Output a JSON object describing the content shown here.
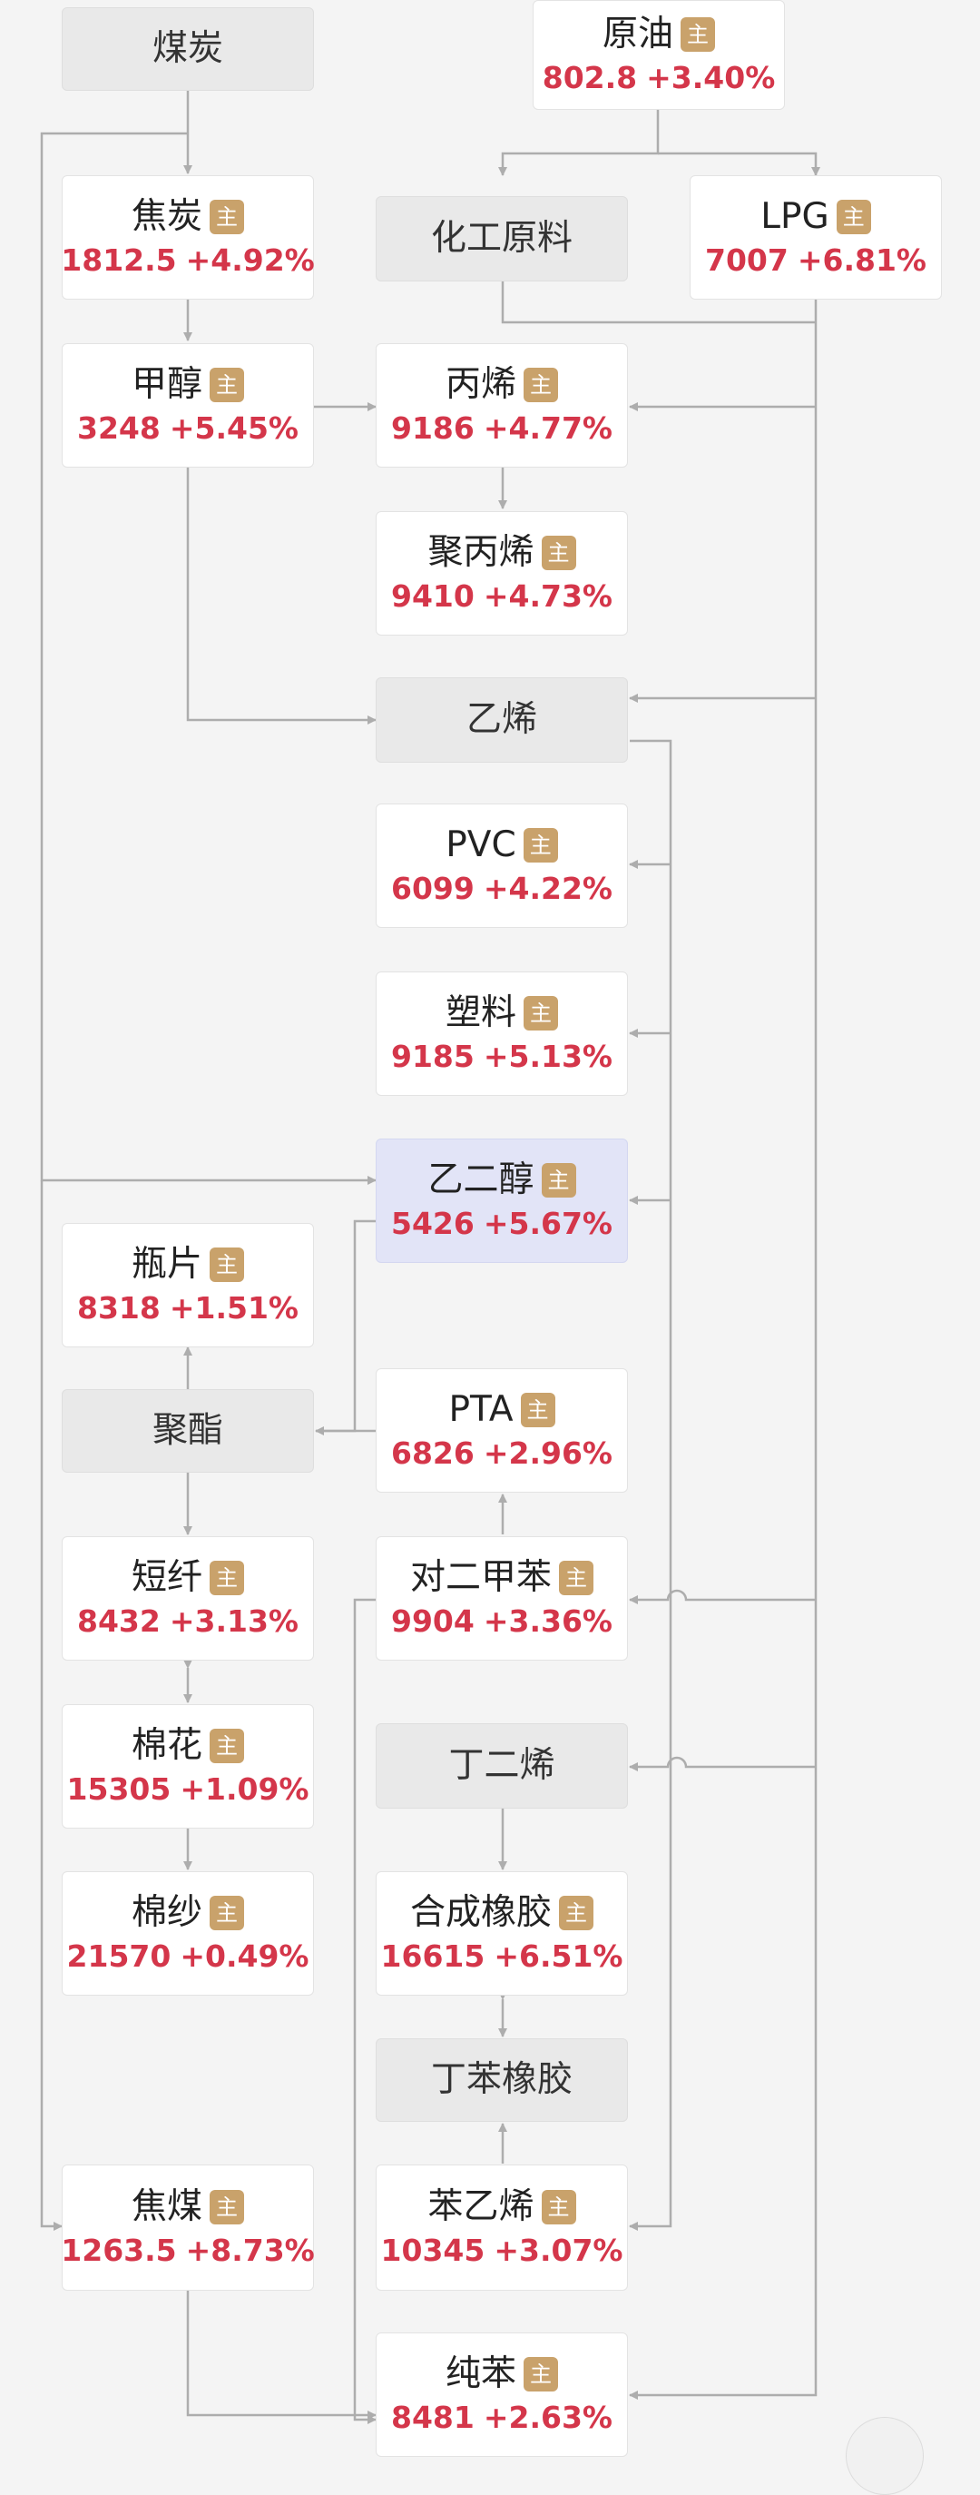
{
  "badge_text": "主",
  "colors": {
    "price": "#d4364a",
    "badge": "#c9a26b",
    "connector": "#adadad",
    "highlight": "#e2e4f7"
  },
  "nodes": [
    {
      "id": "coal",
      "name": "煤炭",
      "type": "category"
    },
    {
      "id": "crude_oil",
      "name": "原油",
      "price": "802.8",
      "change": "+3.40%",
      "badge": true
    },
    {
      "id": "coke",
      "name": "焦炭",
      "price": "1812.5",
      "change": "+4.92%",
      "badge": true
    },
    {
      "id": "chem_feedstock",
      "name": "化工原料",
      "type": "category"
    },
    {
      "id": "lpg",
      "name": "LPG",
      "price": "7007",
      "change": "+6.81%",
      "badge": true
    },
    {
      "id": "methanol",
      "name": "甲醇",
      "price": "3248",
      "change": "+5.45%",
      "badge": true
    },
    {
      "id": "propylene",
      "name": "丙烯",
      "price": "9186",
      "change": "+4.77%",
      "badge": true
    },
    {
      "id": "polypropylene",
      "name": "聚丙烯",
      "price": "9410",
      "change": "+4.73%",
      "badge": true
    },
    {
      "id": "ethylene",
      "name": "乙烯",
      "type": "category"
    },
    {
      "id": "pvc",
      "name": "PVC",
      "price": "6099",
      "change": "+4.22%",
      "badge": true
    },
    {
      "id": "plastics",
      "name": "塑料",
      "price": "9185",
      "change": "+5.13%",
      "badge": true
    },
    {
      "id": "ethylene_glycol",
      "name": "乙二醇",
      "price": "5426",
      "change": "+5.67%",
      "badge": true,
      "selected": true
    },
    {
      "id": "bottle_chips",
      "name": "瓶片",
      "price": "8318",
      "change": "+1.51%",
      "badge": true
    },
    {
      "id": "polyester",
      "name": "聚酯",
      "type": "category"
    },
    {
      "id": "pta",
      "name": "PTA",
      "price": "6826",
      "change": "+2.96%",
      "badge": true
    },
    {
      "id": "staple_fiber",
      "name": "短纤",
      "price": "8432",
      "change": "+3.13%",
      "badge": true
    },
    {
      "id": "paraxylene",
      "name": "对二甲苯",
      "price": "9904",
      "change": "+3.36%",
      "badge": true
    },
    {
      "id": "cotton",
      "name": "棉花",
      "price": "15305",
      "change": "+1.09%",
      "badge": true
    },
    {
      "id": "butadiene",
      "name": "丁二烯",
      "type": "category"
    },
    {
      "id": "cotton_yarn",
      "name": "棉纱",
      "price": "21570",
      "change": "+0.49%",
      "badge": true
    },
    {
      "id": "synthetic_rubber",
      "name": "合成橡胶",
      "price": "16615",
      "change": "+6.51%",
      "badge": true
    },
    {
      "id": "sbr",
      "name": "丁苯橡胶",
      "type": "category"
    },
    {
      "id": "coking_coal",
      "name": "焦煤",
      "price": "1263.5",
      "change": "+8.73%",
      "badge": true
    },
    {
      "id": "styrene",
      "name": "苯乙烯",
      "price": "10345",
      "change": "+3.07%",
      "badge": true
    },
    {
      "id": "benzene",
      "name": "纯苯",
      "price": "8481",
      "change": "+2.63%",
      "badge": true
    }
  ]
}
